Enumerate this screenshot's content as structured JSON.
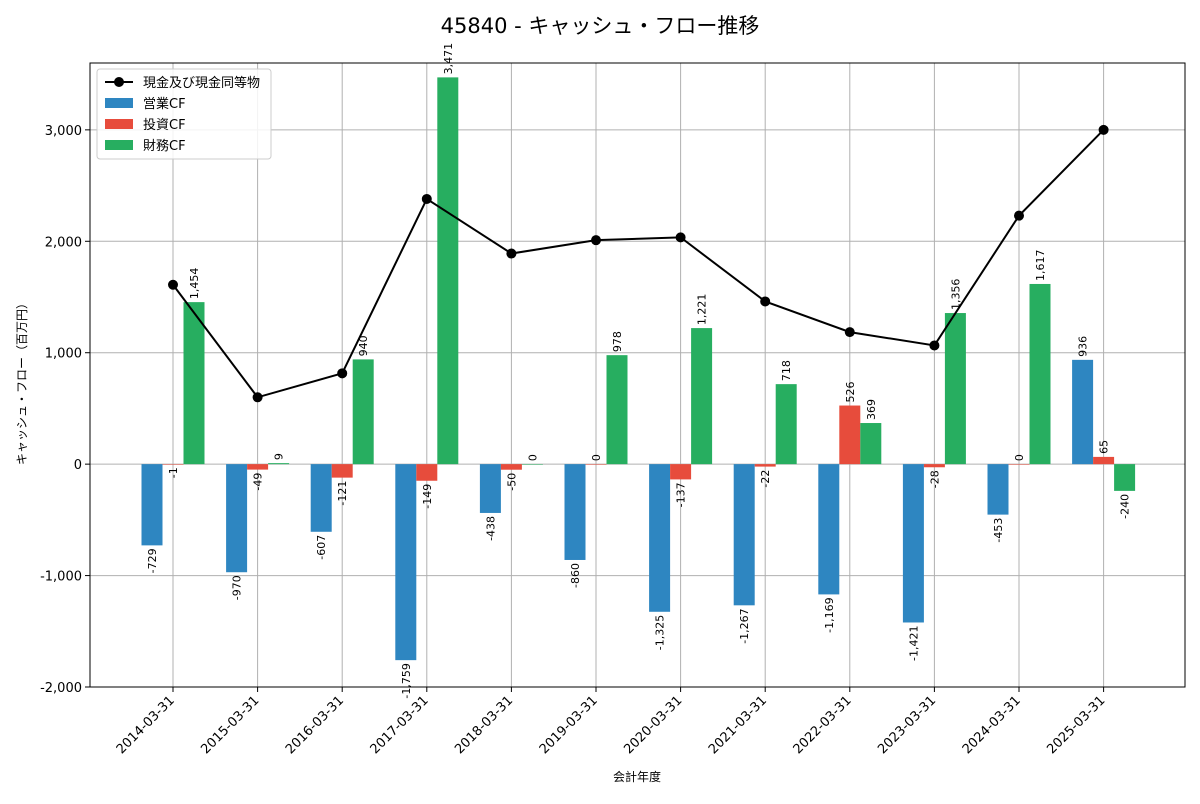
{
  "chart_data": {
    "type": "bar",
    "title": "45840 - キャッシュ・フロー推移",
    "xlabel": "会計年度",
    "ylabel": "キャッシュ・フロー（百万円）",
    "ylim": [
      -2000,
      3600
    ],
    "yticks": [
      -2000,
      -1000,
      0,
      1000,
      2000,
      3000
    ],
    "ytick_labels": [
      "-2,000",
      "-1,000",
      "0",
      "1,000",
      "2,000",
      "3,000"
    ],
    "grid": true,
    "legend_position": "top-left",
    "categories": [
      "2014-03-31",
      "2015-03-31",
      "2016-03-31",
      "2017-03-31",
      "2018-03-31",
      "2019-03-31",
      "2020-03-31",
      "2021-03-31",
      "2022-03-31",
      "2023-03-31",
      "2024-03-31",
      "2025-03-31"
    ],
    "series": [
      {
        "name": "営業CF",
        "color": "#2e86c1",
        "values": [
          -729,
          -970,
          -607,
          -1759,
          -438,
          -860,
          -1325,
          -1267,
          -1169,
          -1421,
          -453,
          936
        ],
        "labels": [
          "-729",
          "-970",
          "-607",
          "-1,759",
          "-438",
          "-860",
          "-1,325",
          "-1,267",
          "-1,169",
          "-1,421",
          "-453",
          "936"
        ]
      },
      {
        "name": "投資CF",
        "color": "#e74c3c",
        "values": [
          -1,
          -49,
          -121,
          -149,
          -50,
          0,
          -137,
          -22,
          526,
          -28,
          0,
          65
        ],
        "labels": [
          "-1",
          "-49",
          "-121",
          "-149",
          "-50",
          "0",
          "-137",
          "-22",
          "526",
          "-28",
          "0",
          "65"
        ]
      },
      {
        "name": "財務CF",
        "color": "#27ae60",
        "values": [
          1454,
          9,
          940,
          3471,
          0,
          978,
          1221,
          718,
          369,
          1356,
          1617,
          -240
        ],
        "labels": [
          "1,454",
          "9",
          "940",
          "3,471",
          "0",
          "978",
          "1,221",
          "718",
          "369",
          "1,356",
          "1,617",
          "-240"
        ]
      }
    ],
    "line_series": {
      "name": "現金及び現金同等物",
      "color": "#000000",
      "values": [
        1610,
        600,
        815,
        2380,
        1890,
        2010,
        2035,
        1460,
        1185,
        1065,
        2230,
        3000
      ]
    }
  }
}
